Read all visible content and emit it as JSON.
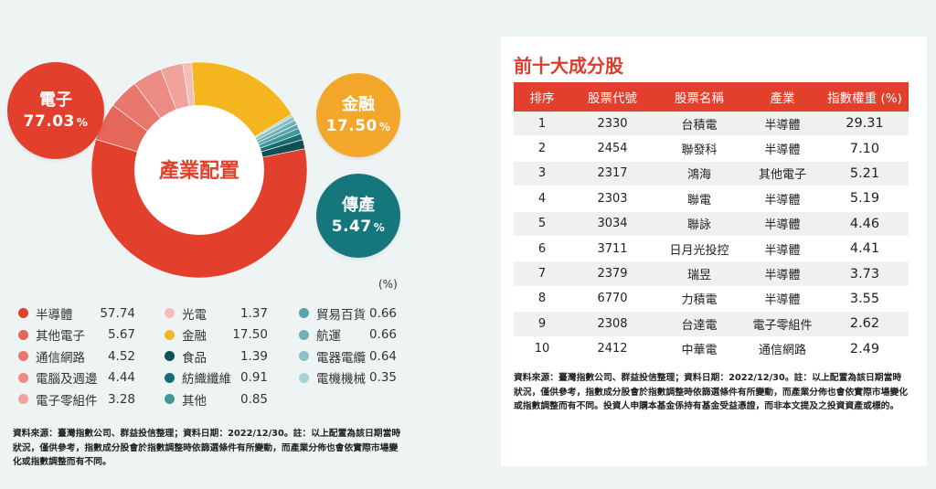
{
  "donut": {
    "center_label": "產業配置",
    "colors": {
      "半導體": "#e2402d",
      "其他電子": "#e4675a",
      "通信網路": "#e8776d",
      "電腦及週邊": "#ec8c84",
      "電子零組件": "#f0a29c",
      "光電": "#f5bcb8",
      "金融": "#f4b51e",
      "食品": "#0e5054",
      "紡織纖維": "#186c70",
      "其他": "#43979b",
      "貿易百貨": "#5aa4a8",
      "航運": "#6fb1b5",
      "電器電纜": "#8ac1c4",
      "電機機械": "#a8d3d5"
    }
  },
  "bubbles": {
    "electronics": {
      "name": "電子",
      "value": "77.03",
      "unit": "%"
    },
    "finance": {
      "name": "金融",
      "value": "17.50",
      "unit": "%"
    },
    "traditional": {
      "name": "傳產",
      "value": "5.47",
      "unit": "%"
    }
  },
  "legend": {
    "unit": "(%)",
    "col1": [
      {
        "label": "半導體",
        "value": "57.74",
        "color": "#e2402d"
      },
      {
        "label": "其他電子",
        "value": "5.67",
        "color": "#e4675a"
      },
      {
        "label": "通信網路",
        "value": "4.52",
        "color": "#e8776d"
      },
      {
        "label": "電腦及週邊",
        "value": "4.44",
        "color": "#ec8c84"
      },
      {
        "label": "電子零組件",
        "value": "3.28",
        "color": "#f0a29c"
      }
    ],
    "col2": [
      {
        "label": "光電",
        "value": "1.37",
        "color": "#f5bcb8"
      },
      {
        "label": "金融",
        "value": "17.50",
        "color": "#f4b51e"
      },
      {
        "label": "食品",
        "value": "1.39",
        "color": "#0e5054"
      },
      {
        "label": "紡織纖維",
        "value": "0.91",
        "color": "#186c70"
      },
      {
        "label": "其他",
        "value": "0.85",
        "color": "#43979b"
      }
    ],
    "col3": [
      {
        "label": "貿易百貨",
        "value": "0.66",
        "color": "#5aa4a8"
      },
      {
        "label": "航運",
        "value": "0.66",
        "color": "#6fb1b5"
      },
      {
        "label": "電器電纜",
        "value": "0.64",
        "color": "#8ac1c4"
      },
      {
        "label": "電機機械",
        "value": "0.35",
        "color": "#a8d3d5"
      }
    ]
  },
  "left_note": "資料來源：臺灣指數公司、群益投信整理；資料日期：2022/12/30。註：以上配置為該日期當時狀況，僅供參考，指數成分股會於指數調整時依篩選條件有所變動，而產業分佈也會依實際市場變化或指數調整而有不同。",
  "table": {
    "title": "前十大成分股",
    "headers": [
      "排序",
      "股票代號",
      "股票名稱",
      "產業",
      "指數權重 (%)"
    ],
    "rows": [
      [
        "1",
        "2330",
        "台積電",
        "半導體",
        "29.31"
      ],
      [
        "2",
        "2454",
        "聯發科",
        "半導體",
        "7.10"
      ],
      [
        "3",
        "2317",
        "鴻海",
        "其他電子",
        "5.21"
      ],
      [
        "4",
        "2303",
        "聯電",
        "半導體",
        "5.19"
      ],
      [
        "5",
        "3034",
        "聯詠",
        "半導體",
        "4.46"
      ],
      [
        "6",
        "3711",
        "日月光投控",
        "半導體",
        "4.41"
      ],
      [
        "7",
        "2379",
        "瑞昱",
        "半導體",
        "3.73"
      ],
      [
        "8",
        "6770",
        "力積電",
        "半導體",
        "3.55"
      ],
      [
        "9",
        "2308",
        "台達電",
        "電子零組件",
        "2.62"
      ],
      [
        "10",
        "2412",
        "中華電",
        "通信網路",
        "2.49"
      ]
    ]
  },
  "right_note": "資料來源：臺灣指數公司、群益投信整理；資料日期：2022/12/30。註：以上配置為該日期當時狀況，僅供參考，指數成分股會於指數調整時依篩選條件有所變動，而產業分佈也會依實際市場變化或指數調整而有不同。投資人申購本基金係持有基金受益憑證，而非本文提及之投資資產或標的。",
  "chart_data": {
    "type": "pie",
    "title": "產業配置",
    "categories": [
      "半導體",
      "其他電子",
      "通信網路",
      "電腦及週邊",
      "電子零組件",
      "光電",
      "金融",
      "食品",
      "紡織纖維",
      "其他",
      "貿易百貨",
      "航運",
      "電器電纜",
      "電機機械"
    ],
    "values": [
      57.74,
      5.67,
      4.52,
      4.44,
      3.28,
      1.37,
      17.5,
      1.39,
      0.91,
      0.85,
      0.66,
      0.66,
      0.64,
      0.35
    ],
    "order": [
      "光電",
      "金融",
      "電機機械",
      "電器電纜",
      "航運",
      "貿易百貨",
      "其他",
      "紡織纖維",
      "食品",
      "半導體",
      "其他電子",
      "通信網路",
      "電腦及週邊",
      "電子零組件"
    ],
    "groups": [
      {
        "name": "電子",
        "value": 77.03
      },
      {
        "name": "金融",
        "value": 17.5
      },
      {
        "name": "傳產",
        "value": 5.47
      }
    ]
  }
}
